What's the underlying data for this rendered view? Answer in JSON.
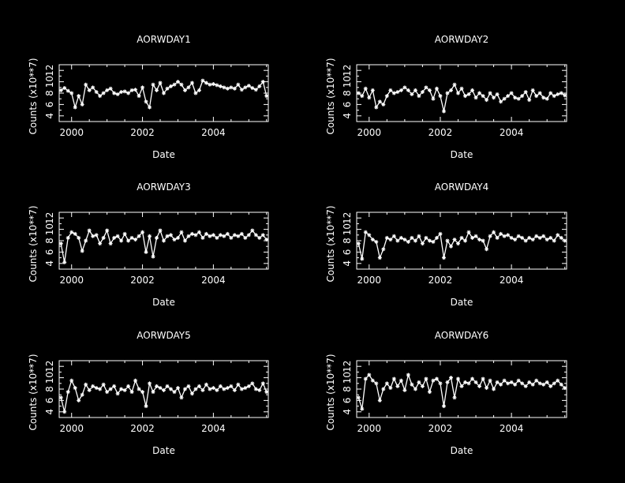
{
  "colors": {
    "background": "#000000",
    "foreground": "#ffffff"
  },
  "chart_data": [
    {
      "type": "line",
      "marker": "star",
      "title": "AORWDAY1",
      "xlabel": "Date",
      "ylabel": "Counts (x10**7)",
      "xlim": [
        1999.65,
        2005.55
      ],
      "ylim": [
        3,
        13
      ],
      "xticks": [
        "2000",
        "2002",
        "2004"
      ],
      "yticks": [
        "4",
        "6",
        "8",
        "10",
        "12"
      ],
      "x": [
        1999.7,
        1999.8,
        1999.9,
        2000.0,
        2000.1,
        2000.2,
        2000.3,
        2000.4,
        2000.5,
        2000.6,
        2000.7,
        2000.8,
        2000.9,
        2001.0,
        2001.1,
        2001.2,
        2001.3,
        2001.4,
        2001.5,
        2001.6,
        2001.7,
        2001.8,
        2001.9,
        2002.0,
        2002.1,
        2002.2,
        2002.3,
        2002.4,
        2002.5,
        2002.6,
        2002.7,
        2002.8,
        2002.9,
        2003.0,
        2003.1,
        2003.2,
        2003.3,
        2003.4,
        2003.5,
        2003.6,
        2003.7,
        2003.8,
        2003.9,
        2004.0,
        2004.1,
        2004.2,
        2004.3,
        2004.4,
        2004.5,
        2004.6,
        2004.7,
        2004.8,
        2004.9,
        2005.0,
        2005.1,
        2005.2,
        2005.3,
        2005.4,
        2005.5
      ],
      "y": [
        8.5,
        8.9,
        8.4,
        8.0,
        5.5,
        7.5,
        6.0,
        9.5,
        8.5,
        9.0,
        8.2,
        7.5,
        8.0,
        8.5,
        8.8,
        8.0,
        7.8,
        8.2,
        8.3,
        8.0,
        8.5,
        8.6,
        7.5,
        9.0,
        6.5,
        5.5,
        9.5,
        8.5,
        9.8,
        8.0,
        8.8,
        9.2,
        9.5,
        10.0,
        9.5,
        8.5,
        9.0,
        9.8,
        8.0,
        8.5,
        10.2,
        9.8,
        9.5,
        9.6,
        9.4,
        9.2,
        9.0,
        8.8,
        9.0,
        8.8,
        9.5,
        8.6,
        9.0,
        9.3,
        8.9,
        8.6,
        9.2,
        10.0,
        7.5
      ]
    },
    {
      "type": "line",
      "marker": "star",
      "title": "AORWDAY2",
      "xlabel": "Date",
      "ylabel": "Counts (x10**7)",
      "xlim": [
        1999.65,
        2005.55
      ],
      "ylim": [
        3,
        13
      ],
      "xticks": [
        "2000",
        "2002",
        "2004"
      ],
      "yticks": [
        "4",
        "6",
        "8",
        "10",
        "12"
      ],
      "x": [
        1999.7,
        1999.8,
        1999.9,
        2000.0,
        2000.1,
        2000.2,
        2000.3,
        2000.4,
        2000.5,
        2000.6,
        2000.7,
        2000.8,
        2000.9,
        2001.0,
        2001.1,
        2001.2,
        2001.3,
        2001.4,
        2001.5,
        2001.6,
        2001.7,
        2001.8,
        2001.9,
        2002.0,
        2002.1,
        2002.2,
        2002.3,
        2002.4,
        2002.5,
        2002.6,
        2002.7,
        2002.8,
        2002.9,
        2003.0,
        2003.1,
        2003.2,
        2003.3,
        2003.4,
        2003.5,
        2003.6,
        2003.7,
        2003.8,
        2003.9,
        2004.0,
        2004.1,
        2004.2,
        2004.3,
        2004.4,
        2004.5,
        2004.6,
        2004.7,
        2004.8,
        2004.9,
        2005.0,
        2005.1,
        2005.2,
        2005.3,
        2005.4,
        2005.5
      ],
      "y": [
        8.0,
        7.5,
        8.8,
        7.2,
        8.5,
        5.5,
        6.5,
        6.0,
        7.5,
        8.5,
        8.0,
        8.2,
        8.5,
        9.0,
        8.5,
        7.8,
        8.5,
        7.5,
        8.2,
        9.0,
        8.5,
        7.0,
        8.8,
        7.5,
        4.8,
        8.0,
        8.5,
        9.5,
        8.0,
        8.8,
        7.5,
        7.8,
        8.5,
        7.2,
        8.0,
        7.5,
        6.8,
        8.0,
        7.2,
        7.8,
        6.5,
        7.0,
        7.5,
        8.0,
        7.2,
        7.0,
        7.5,
        8.2,
        6.8,
        8.5,
        7.5,
        8.0,
        7.2,
        7.0,
        8.0,
        7.5,
        7.8,
        8.0,
        7.6
      ]
    },
    {
      "type": "line",
      "marker": "star",
      "title": "AORWDAY3",
      "xlabel": "Date",
      "ylabel": "Counts (x10**7)",
      "xlim": [
        1999.65,
        2005.55
      ],
      "ylim": [
        3,
        13
      ],
      "xticks": [
        "2000",
        "2002",
        "2004"
      ],
      "yticks": [
        "4",
        "6",
        "8",
        "10",
        "12"
      ],
      "x": [
        1999.7,
        1999.8,
        1999.9,
        2000.0,
        2000.1,
        2000.2,
        2000.3,
        2000.4,
        2000.5,
        2000.6,
        2000.7,
        2000.8,
        2000.9,
        2001.0,
        2001.1,
        2001.2,
        2001.3,
        2001.4,
        2001.5,
        2001.6,
        2001.7,
        2001.8,
        2001.9,
        2002.0,
        2002.1,
        2002.2,
        2002.3,
        2002.4,
        2002.5,
        2002.6,
        2002.7,
        2002.8,
        2002.9,
        2003.0,
        2003.1,
        2003.2,
        2003.3,
        2003.4,
        2003.5,
        2003.6,
        2003.7,
        2003.8,
        2003.9,
        2004.0,
        2004.1,
        2004.2,
        2004.3,
        2004.4,
        2004.5,
        2004.6,
        2004.7,
        2004.8,
        2004.9,
        2005.0,
        2005.1,
        2005.2,
        2005.3,
        2005.4,
        2005.5
      ],
      "y": [
        7.5,
        4.2,
        8.5,
        9.5,
        9.2,
        8.5,
        6.2,
        8.0,
        9.8,
        8.8,
        9.0,
        7.5,
        8.5,
        9.8,
        7.5,
        8.5,
        8.8,
        8.0,
        9.2,
        8.0,
        8.5,
        8.2,
        8.8,
        9.5,
        6.0,
        8.8,
        5.2,
        8.5,
        9.8,
        8.0,
        8.8,
        9.0,
        8.2,
        8.5,
        9.5,
        8.0,
        8.8,
        9.2,
        9.0,
        9.5,
        8.5,
        9.2,
        8.8,
        9.0,
        8.5,
        9.0,
        8.8,
        9.2,
        8.5,
        9.0,
        8.8,
        9.2,
        8.5,
        9.0,
        9.8,
        9.0,
        8.5,
        9.0,
        8.2
      ]
    },
    {
      "type": "line",
      "marker": "star",
      "title": "AORWDAY4",
      "xlabel": "Date",
      "ylabel": "Counts (x10**7)",
      "xlim": [
        1999.65,
        2005.55
      ],
      "ylim": [
        3,
        13
      ],
      "xticks": [
        "2000",
        "2002",
        "2004"
      ],
      "yticks": [
        "4",
        "6",
        "8",
        "10",
        "12"
      ],
      "x": [
        1999.7,
        1999.8,
        1999.9,
        2000.0,
        2000.1,
        2000.2,
        2000.3,
        2000.4,
        2000.5,
        2000.6,
        2000.7,
        2000.8,
        2000.9,
        2001.0,
        2001.1,
        2001.2,
        2001.3,
        2001.4,
        2001.5,
        2001.6,
        2001.7,
        2001.8,
        2001.9,
        2002.0,
        2002.1,
        2002.2,
        2002.3,
        2002.4,
        2002.5,
        2002.6,
        2002.7,
        2002.8,
        2002.9,
        2003.0,
        2003.1,
        2003.2,
        2003.3,
        2003.4,
        2003.5,
        2003.6,
        2003.7,
        2003.8,
        2003.9,
        2004.0,
        2004.1,
        2004.2,
        2004.3,
        2004.4,
        2004.5,
        2004.6,
        2004.7,
        2004.8,
        2004.9,
        2005.0,
        2005.1,
        2005.2,
        2005.3,
        2005.4,
        2005.5
      ],
      "y": [
        7.5,
        4.8,
        9.5,
        9.0,
        8.2,
        7.8,
        5.0,
        6.5,
        8.5,
        8.2,
        8.8,
        8.0,
        8.5,
        8.2,
        7.8,
        8.5,
        8.0,
        8.8,
        7.5,
        8.5,
        8.0,
        7.8,
        8.5,
        9.2,
        5.0,
        8.0,
        7.0,
        8.2,
        7.5,
        8.5,
        8.0,
        9.5,
        8.5,
        8.8,
        8.2,
        8.0,
        6.5,
        8.8,
        9.5,
        8.5,
        9.2,
        8.8,
        9.0,
        8.5,
        8.2,
        8.8,
        8.5,
        8.0,
        8.5,
        8.2,
        8.8,
        8.5,
        8.8,
        8.2,
        8.5,
        8.0,
        9.0,
        8.5,
        8.0
      ]
    },
    {
      "type": "line",
      "marker": "star",
      "title": "AORWDAY5",
      "xlabel": "Date",
      "ylabel": "Counts (x10**7)",
      "xlim": [
        1999.65,
        2005.55
      ],
      "ylim": [
        3,
        13
      ],
      "xticks": [
        "2000",
        "2002",
        "2004"
      ],
      "yticks": [
        "4",
        "6",
        "8",
        "10",
        "12"
      ],
      "x": [
        1999.7,
        1999.8,
        1999.9,
        2000.0,
        2000.1,
        2000.2,
        2000.3,
        2000.4,
        2000.5,
        2000.6,
        2000.7,
        2000.8,
        2000.9,
        2001.0,
        2001.1,
        2001.2,
        2001.3,
        2001.4,
        2001.5,
        2001.6,
        2001.7,
        2001.8,
        2001.9,
        2002.0,
        2002.1,
        2002.2,
        2002.3,
        2002.4,
        2002.5,
        2002.6,
        2002.7,
        2002.8,
        2002.9,
        2003.0,
        2003.1,
        2003.2,
        2003.3,
        2003.4,
        2003.5,
        2003.6,
        2003.7,
        2003.8,
        2003.9,
        2004.0,
        2004.1,
        2004.2,
        2004.3,
        2004.4,
        2004.5,
        2004.6,
        2004.7,
        2004.8,
        2004.9,
        2005.0,
        2005.1,
        2005.2,
        2005.3,
        2005.4,
        2005.5
      ],
      "y": [
        6.5,
        4.0,
        7.5,
        9.5,
        8.2,
        6.0,
        7.0,
        8.8,
        7.8,
        8.5,
        8.2,
        8.0,
        8.8,
        7.5,
        8.0,
        8.5,
        7.2,
        8.0,
        7.8,
        8.5,
        7.5,
        9.5,
        8.0,
        7.5,
        5.0,
        9.0,
        7.5,
        8.5,
        8.2,
        7.8,
        8.5,
        8.0,
        7.5,
        8.2,
        6.5,
        8.0,
        8.5,
        7.2,
        8.0,
        8.5,
        7.8,
        8.8,
        8.0,
        8.2,
        7.8,
        8.5,
        8.0,
        8.2,
        8.5,
        7.8,
        8.8,
        8.0,
        8.2,
        8.5,
        9.0,
        8.0,
        7.8,
        9.0,
        7.5
      ]
    },
    {
      "type": "line",
      "marker": "star",
      "title": "AORWDAY6",
      "xlabel": "Date",
      "ylabel": "Counts (x10**7)",
      "xlim": [
        1999.65,
        2005.55
      ],
      "ylim": [
        3,
        13
      ],
      "xticks": [
        "2000",
        "2002",
        "2004"
      ],
      "yticks": [
        "4",
        "6",
        "8",
        "10",
        "12"
      ],
      "x": [
        1999.7,
        1999.8,
        1999.9,
        2000.0,
        2000.1,
        2000.2,
        2000.3,
        2000.4,
        2000.5,
        2000.6,
        2000.7,
        2000.8,
        2000.9,
        2001.0,
        2001.1,
        2001.2,
        2001.3,
        2001.4,
        2001.5,
        2001.6,
        2001.7,
        2001.8,
        2001.9,
        2002.0,
        2002.1,
        2002.2,
        2002.3,
        2002.4,
        2002.5,
        2002.6,
        2002.7,
        2002.8,
        2002.9,
        2003.0,
        2003.1,
        2003.2,
        2003.3,
        2003.4,
        2003.5,
        2003.6,
        2003.7,
        2003.8,
        2003.9,
        2004.0,
        2004.1,
        2004.2,
        2004.3,
        2004.4,
        2004.5,
        2004.6,
        2004.7,
        2004.8,
        2004.9,
        2005.0,
        2005.1,
        2005.2,
        2005.3,
        2005.4,
        2005.5
      ],
      "y": [
        6.5,
        4.5,
        9.8,
        10.5,
        9.5,
        9.0,
        6.0,
        8.0,
        9.0,
        8.2,
        9.8,
        8.5,
        9.5,
        7.8,
        10.5,
        8.8,
        8.0,
        9.2,
        8.5,
        9.8,
        7.5,
        9.5,
        9.8,
        9.0,
        5.0,
        9.2,
        10.0,
        6.5,
        9.8,
        8.5,
        9.2,
        9.0,
        9.8,
        9.2,
        8.5,
        9.8,
        8.2,
        9.5,
        8.0,
        9.2,
        8.8,
        9.5,
        9.0,
        9.2,
        8.8,
        9.5,
        9.0,
        8.5,
        9.2,
        8.8,
        9.5,
        9.0,
        8.8,
        9.2,
        8.5,
        9.0,
        9.5,
        8.8,
        8.2
      ]
    }
  ]
}
